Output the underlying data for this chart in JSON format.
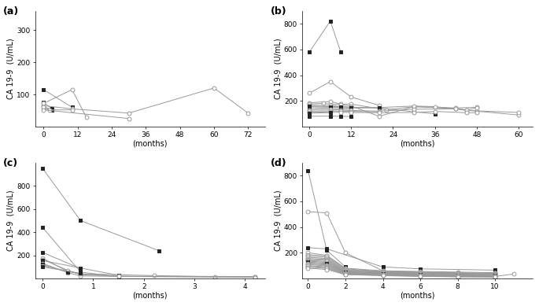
{
  "panel_a": {
    "title": "(a)",
    "xlabel": "(months)",
    "ylabel": "CA 19‑9  (U/mL)",
    "xlim": [
      -3,
      78
    ],
    "ylim": [
      0,
      360
    ],
    "yticks": [
      100,
      200,
      300
    ],
    "xticks": [
      0,
      12,
      24,
      36,
      48,
      60,
      72
    ],
    "series": [
      {
        "x": [
          0,
          10
        ],
        "y": [
          115,
          60
        ],
        "marker": "s",
        "filled": true
      },
      {
        "x": [
          0,
          3
        ],
        "y": [
          75,
          55
        ],
        "marker": "s",
        "filled": true
      },
      {
        "x": [
          0,
          3
        ],
        "y": [
          62,
          52
        ],
        "marker": "s",
        "filled": true
      },
      {
        "x": [
          0,
          3
        ],
        "y": [
          55,
          50
        ],
        "marker": "s",
        "filled": true
      },
      {
        "x": [
          0,
          10,
          30,
          60,
          72
        ],
        "y": [
          65,
          55,
          42,
          120,
          42
        ],
        "marker": "o",
        "filled": false
      },
      {
        "x": [
          0,
          10,
          15
        ],
        "y": [
          72,
          115,
          30
        ],
        "marker": "o",
        "filled": false
      },
      {
        "x": [
          0,
          2,
          10
        ],
        "y": [
          60,
          52,
          52
        ],
        "marker": "o",
        "filled": false
      },
      {
        "x": [
          0,
          30
        ],
        "y": [
          52,
          25
        ],
        "marker": "o",
        "filled": false
      }
    ]
  },
  "panel_b": {
    "title": "(b)",
    "xlabel": "(months)",
    "ylabel": "CA 19‑9  (U/mL)",
    "xlim": [
      -2,
      64
    ],
    "ylim": [
      0,
      900
    ],
    "yticks": [
      200,
      400,
      600,
      800
    ],
    "xticks": [
      0,
      12,
      24,
      36,
      48,
      60
    ],
    "series": [
      {
        "x": [
          0,
          6,
          9
        ],
        "y": [
          580,
          820,
          580
        ],
        "marker": "s",
        "filled": true
      },
      {
        "x": [
          0,
          6,
          12,
          20
        ],
        "y": [
          260,
          350,
          230,
          165
        ],
        "marker": "o",
        "filled": false
      },
      {
        "x": [
          0,
          6,
          9,
          12,
          22,
          30,
          42,
          48
        ],
        "y": [
          185,
          195,
          175,
          175,
          130,
          155,
          145,
          150
        ],
        "marker": "o",
        "filled": false
      },
      {
        "x": [
          0,
          4,
          9,
          12,
          20,
          30,
          42,
          48,
          60
        ],
        "y": [
          175,
          180,
          170,
          160,
          80,
          155,
          140,
          120,
          90
        ],
        "marker": "o",
        "filled": false
      },
      {
        "x": [
          0,
          6,
          9,
          12,
          20,
          30,
          36,
          45,
          48
        ],
        "y": [
          165,
          165,
          155,
          150,
          148,
          160,
          155,
          130,
          145
        ],
        "marker": "o",
        "filled": false
      },
      {
        "x": [
          0,
          6,
          9,
          12
        ],
        "y": [
          160,
          155,
          155,
          148
        ],
        "marker": "s",
        "filled": true
      },
      {
        "x": [
          0,
          6,
          9,
          12,
          20,
          30,
          36
        ],
        "y": [
          155,
          150,
          148,
          145,
          145,
          115,
          100
        ],
        "marker": "s",
        "filled": true
      },
      {
        "x": [
          0,
          6,
          9,
          12
        ],
        "y": [
          145,
          140,
          138,
          135
        ],
        "marker": "s",
        "filled": true
      },
      {
        "x": [
          0,
          6,
          9,
          12,
          20,
          30,
          42,
          45,
          60
        ],
        "y": [
          130,
          135,
          128,
          125,
          120,
          135,
          138,
          125,
          110
        ],
        "marker": "o",
        "filled": false
      },
      {
        "x": [
          0,
          6,
          9,
          12,
          20
        ],
        "y": [
          120,
          122,
          120,
          118,
          115
        ],
        "marker": "o",
        "filled": false
      },
      {
        "x": [
          0,
          6,
          9,
          12,
          20,
          30,
          36,
          45,
          48
        ],
        "y": [
          110,
          115,
          112,
          110,
          108,
          110,
          118,
          108,
          108
        ],
        "marker": "o",
        "filled": false
      },
      {
        "x": [
          0,
          6
        ],
        "y": [
          105,
          108
        ],
        "marker": "s",
        "filled": true
      },
      {
        "x": [
          0,
          6,
          9,
          12
        ],
        "y": [
          80,
          82,
          80,
          78
        ],
        "marker": "s",
        "filled": true
      }
    ]
  },
  "panel_c": {
    "title": "(c)",
    "xlabel": "(months)",
    "ylabel": "CA 19‑9  (U/mL)",
    "xlim": [
      -0.15,
      4.4
    ],
    "ylim": [
      0,
      1000
    ],
    "yticks": [
      200,
      400,
      600,
      800
    ],
    "xticks": [
      0,
      1,
      2,
      3,
      4
    ],
    "series": [
      {
        "x": [
          0,
          0.75,
          2.3
        ],
        "y": [
          950,
          500,
          240
        ],
        "marker": "s",
        "filled": true
      },
      {
        "x": [
          0,
          0.75,
          1.5,
          4.2
        ],
        "y": [
          440,
          55,
          17,
          17
        ],
        "marker": "s",
        "filled": true
      },
      {
        "x": [
          0,
          0.75
        ],
        "y": [
          225,
          85
        ],
        "marker": "s",
        "filled": true
      },
      {
        "x": [
          0,
          0.5,
          0.75,
          2.2,
          3.4
        ],
        "y": [
          175,
          60,
          40,
          25,
          15
        ],
        "marker": "o",
        "filled": false
      },
      {
        "x": [
          0,
          0.5,
          0.75,
          1.5,
          4.2
        ],
        "y": [
          165,
          70,
          32,
          20,
          17
        ],
        "marker": "o",
        "filled": false
      },
      {
        "x": [
          0,
          0.75,
          1.5
        ],
        "y": [
          155,
          90,
          28
        ],
        "marker": "s",
        "filled": true
      },
      {
        "x": [
          0,
          0.5,
          0.75,
          1.5,
          4.2
        ],
        "y": [
          130,
          50,
          22,
          18,
          12
        ],
        "marker": "o",
        "filled": false
      },
      {
        "x": [
          0,
          0.5
        ],
        "y": [
          120,
          55
        ],
        "marker": "s",
        "filled": true
      },
      {
        "x": [
          0,
          0.75,
          1.5,
          4.2
        ],
        "y": [
          110,
          40,
          18,
          10
        ],
        "marker": "o",
        "filled": false
      },
      {
        "x": [
          0,
          0.75
        ],
        "y": [
          100,
          45
        ],
        "marker": "s",
        "filled": true
      }
    ]
  },
  "panel_d": {
    "title": "(d)",
    "xlabel": "(months)",
    "ylabel": "CA 19‑9  (U/mL)",
    "xlim": [
      -0.3,
      12
    ],
    "ylim": [
      0,
      900
    ],
    "yticks": [
      200,
      400,
      600,
      800
    ],
    "xticks": [
      0,
      2,
      4,
      6,
      8,
      10
    ],
    "series": [
      {
        "x": [
          0,
          1,
          2
        ],
        "y": [
          840,
          220,
          90
        ],
        "marker": "s",
        "filled": true
      },
      {
        "x": [
          0,
          1,
          2,
          4,
          4.5
        ],
        "y": [
          520,
          510,
          200,
          60,
          40
        ],
        "marker": "o",
        "filled": false
      },
      {
        "x": [
          0,
          1,
          4,
          6,
          10
        ],
        "y": [
          240,
          230,
          90,
          75,
          65
        ],
        "marker": "s",
        "filled": true
      },
      {
        "x": [
          0,
          1,
          2,
          4,
          6,
          8,
          10
        ],
        "y": [
          200,
          180,
          80,
          60,
          55,
          50,
          45
        ],
        "marker": "o",
        "filled": false
      },
      {
        "x": [
          0,
          1,
          2,
          4,
          6,
          8,
          10
        ],
        "y": [
          185,
          175,
          75,
          55,
          50,
          45,
          42
        ],
        "marker": "o",
        "filled": false
      },
      {
        "x": [
          0,
          1,
          2,
          4,
          6,
          8,
          10
        ],
        "y": [
          175,
          165,
          70,
          52,
          48,
          42,
          40
        ],
        "marker": "o",
        "filled": false
      },
      {
        "x": [
          0,
          1,
          2,
          4,
          6,
          8,
          10
        ],
        "y": [
          165,
          155,
          65,
          50,
          45,
          40,
          38
        ],
        "marker": "o",
        "filled": false
      },
      {
        "x": [
          0,
          1,
          2,
          4,
          6,
          8,
          10
        ],
        "y": [
          155,
          148,
          60,
          48,
          42,
          38,
          35
        ],
        "marker": "o",
        "filled": false
      },
      {
        "x": [
          0,
          1,
          2,
          4,
          6,
          8,
          10
        ],
        "y": [
          148,
          140,
          55,
          45,
          38,
          34,
          32
        ],
        "marker": "o",
        "filled": false
      },
      {
        "x": [
          0,
          1,
          2,
          4,
          6,
          8,
          10
        ],
        "y": [
          140,
          132,
          52,
          42,
          35,
          30,
          28
        ],
        "marker": "o",
        "filled": false
      },
      {
        "x": [
          0,
          1,
          2,
          4,
          6,
          8,
          10
        ],
        "y": [
          135,
          125,
          50,
          40,
          32,
          28,
          26
        ],
        "marker": "o",
        "filled": false
      },
      {
        "x": [
          0,
          1,
          2,
          4,
          6,
          8,
          10
        ],
        "y": [
          128,
          118,
          48,
          38,
          30,
          26,
          24
        ],
        "marker": "s",
        "filled": true
      },
      {
        "x": [
          0,
          1,
          2,
          4,
          6
        ],
        "y": [
          120,
          112,
          45,
          35,
          28
        ],
        "marker": "s",
        "filled": true
      },
      {
        "x": [
          0,
          1,
          2,
          4,
          6,
          8,
          10
        ],
        "y": [
          115,
          105,
          42,
          32,
          26,
          22,
          20
        ],
        "marker": "o",
        "filled": false
      },
      {
        "x": [
          0,
          1,
          2,
          4,
          6,
          8,
          10
        ],
        "y": [
          108,
          98,
          40,
          30,
          24,
          20,
          18
        ],
        "marker": "o",
        "filled": false
      },
      {
        "x": [
          0,
          1,
          2,
          4,
          6,
          8,
          10,
          11
        ],
        "y": [
          100,
          90,
          38,
          28,
          22,
          18,
          16,
          35
        ],
        "marker": "o",
        "filled": false
      },
      {
        "x": [
          0,
          1,
          2,
          4,
          6,
          8,
          10
        ],
        "y": [
          95,
          85,
          35,
          26,
          20,
          16,
          14
        ],
        "marker": "o",
        "filled": false
      },
      {
        "x": [
          0,
          1,
          2,
          4,
          6,
          8,
          10
        ],
        "y": [
          88,
          78,
          32,
          24,
          18,
          14,
          12
        ],
        "marker": "o",
        "filled": false
      },
      {
        "x": [
          0,
          1,
          2,
          4,
          6,
          8,
          10
        ],
        "y": [
          80,
          70,
          30,
          22,
          16,
          12,
          10
        ],
        "marker": "o",
        "filled": false
      }
    ]
  },
  "line_color": "#999999",
  "filled_color": "#222222",
  "open_facecolor": "white",
  "open_edgecolor": "#999999",
  "marker_size": 3.5,
  "linewidth": 0.7
}
